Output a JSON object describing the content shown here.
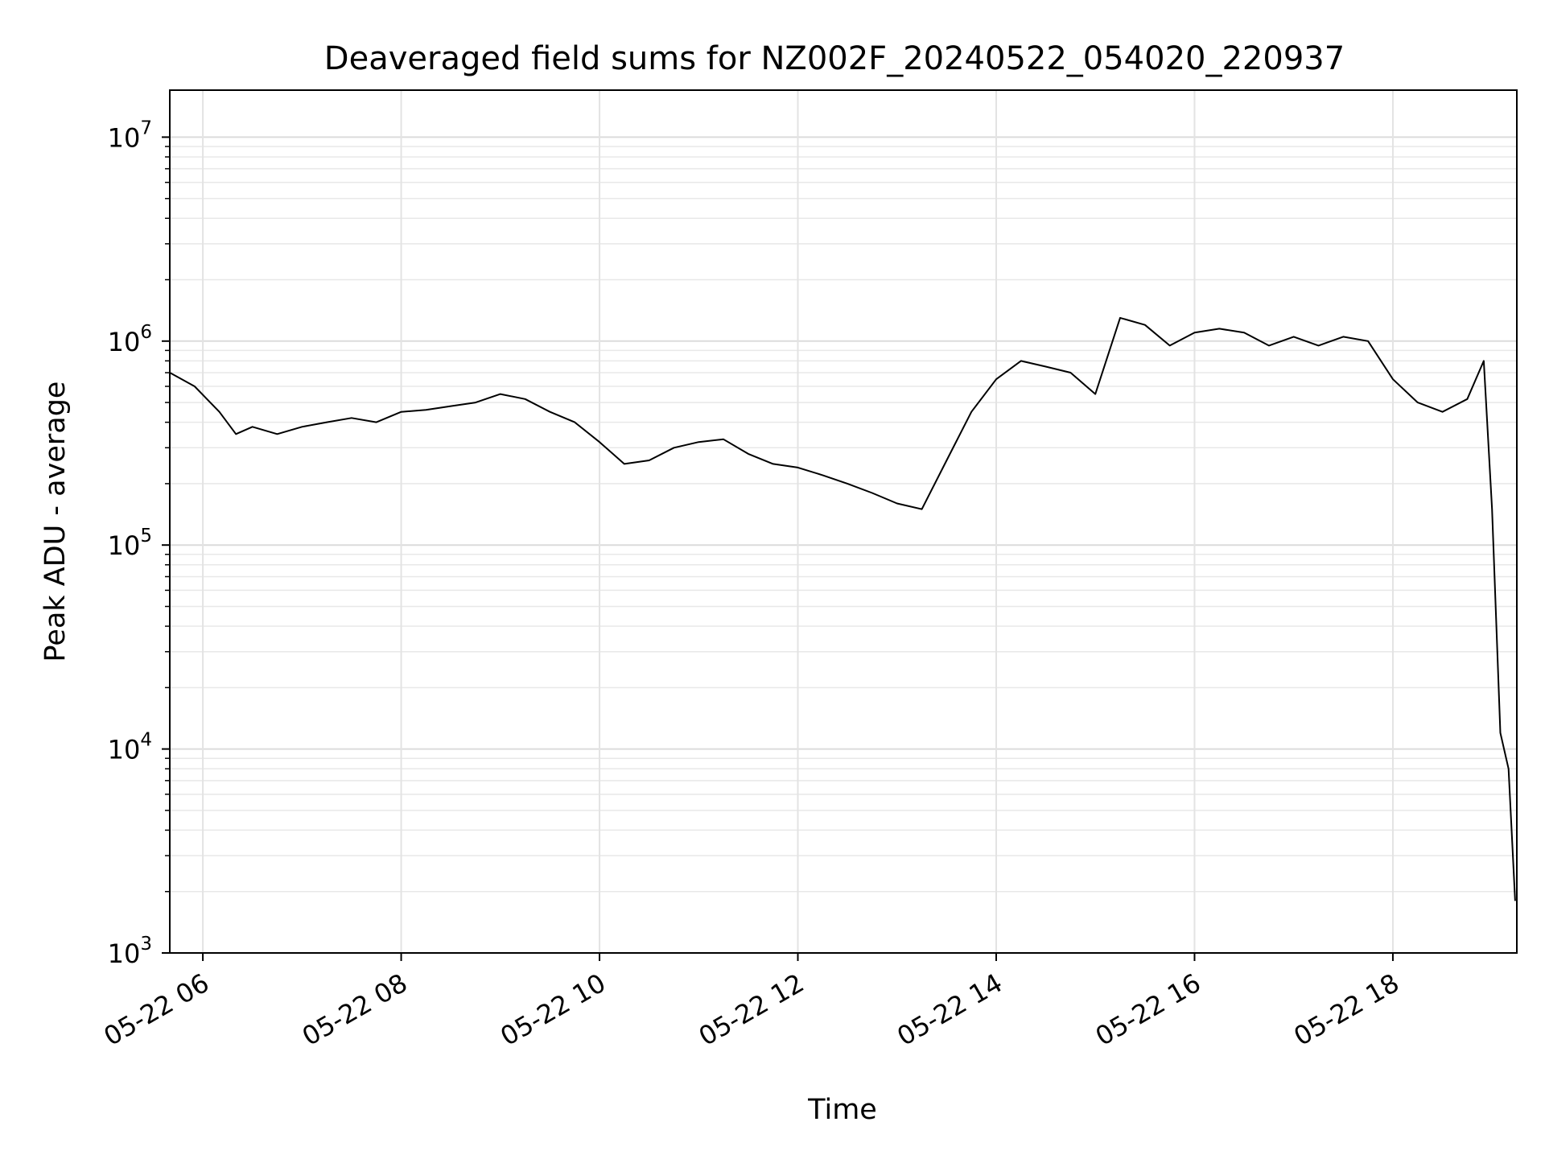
{
  "chart_data": {
    "type": "line",
    "title": "Deaveraged field sums for NZ002F_20240522_054020_220937",
    "xlabel": "Time",
    "ylabel": "Peak ADU - average",
    "yscale": "log",
    "ylim": [
      1000,
      17000000
    ],
    "xlim": [
      "2024-05-22 05:40",
      "2024-05-22 19:15"
    ],
    "grid": true,
    "legend": "none",
    "line_color": "#000000",
    "x_ticks": [
      "05-22 06",
      "05-22 08",
      "05-22 10",
      "05-22 12",
      "05-22 14",
      "05-22 16",
      "05-22 18"
    ],
    "y_ticks": [
      {
        "value": 1000,
        "base": "10",
        "exp": "3"
      },
      {
        "value": 10000,
        "base": "10",
        "exp": "4"
      },
      {
        "value": 100000,
        "base": "10",
        "exp": "5"
      },
      {
        "value": 1000000,
        "base": "10",
        "exp": "6"
      },
      {
        "value": 10000000,
        "base": "10",
        "exp": "7"
      }
    ],
    "series": [
      {
        "x": [
          "2024-05-22 05:40",
          "2024-05-22 05:55",
          "2024-05-22 06:10",
          "2024-05-22 06:20",
          "2024-05-22 06:30",
          "2024-05-22 06:45",
          "2024-05-22 07:00",
          "2024-05-22 07:15",
          "2024-05-22 07:30",
          "2024-05-22 07:45",
          "2024-05-22 08:00",
          "2024-05-22 08:15",
          "2024-05-22 08:30",
          "2024-05-22 08:45",
          "2024-05-22 09:00",
          "2024-05-22 09:15",
          "2024-05-22 09:30",
          "2024-05-22 09:45",
          "2024-05-22 10:00",
          "2024-05-22 10:15",
          "2024-05-22 10:30",
          "2024-05-22 10:45",
          "2024-05-22 11:00",
          "2024-05-22 11:15",
          "2024-05-22 11:30",
          "2024-05-22 11:45",
          "2024-05-22 12:00",
          "2024-05-22 12:15",
          "2024-05-22 12:30",
          "2024-05-22 12:45",
          "2024-05-22 13:00",
          "2024-05-22 13:15",
          "2024-05-22 13:30",
          "2024-05-22 13:45",
          "2024-05-22 14:00",
          "2024-05-22 14:15",
          "2024-05-22 14:30",
          "2024-05-22 14:45",
          "2024-05-22 15:00",
          "2024-05-22 15:15",
          "2024-05-22 15:30",
          "2024-05-22 15:45",
          "2024-05-22 16:00",
          "2024-05-22 16:15",
          "2024-05-22 16:30",
          "2024-05-22 16:45",
          "2024-05-22 17:00",
          "2024-05-22 17:15",
          "2024-05-22 17:30",
          "2024-05-22 17:45",
          "2024-05-22 18:00",
          "2024-05-22 18:15",
          "2024-05-22 18:30",
          "2024-05-22 18:45",
          "2024-05-22 18:55",
          "2024-05-22 19:00",
          "2024-05-22 19:05",
          "2024-05-22 19:10",
          "2024-05-22 19:14"
        ],
        "y": [
          700000,
          600000,
          450000,
          350000,
          380000,
          350000,
          380000,
          400000,
          420000,
          400000,
          450000,
          460000,
          480000,
          500000,
          550000,
          520000,
          450000,
          400000,
          320000,
          250000,
          260000,
          300000,
          320000,
          330000,
          280000,
          250000,
          240000,
          220000,
          200000,
          180000,
          160000,
          150000,
          260000,
          450000,
          650000,
          800000,
          750000,
          700000,
          550000,
          1300000,
          1200000,
          950000,
          1100000,
          1150000,
          1100000,
          950000,
          1050000,
          950000,
          1050000,
          1000000,
          650000,
          500000,
          450000,
          520000,
          800000,
          150000,
          12000,
          8000,
          1800
        ]
      }
    ]
  }
}
